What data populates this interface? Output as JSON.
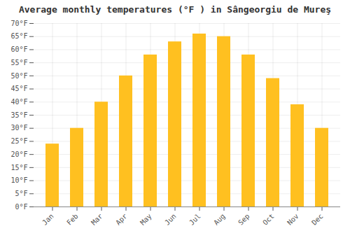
{
  "chart_data": {
    "type": "bar",
    "title": "Average monthly temperatures (°F ) in Sângeorgiu de Mureş",
    "categories": [
      "Jan",
      "Feb",
      "Mar",
      "Apr",
      "May",
      "Jun",
      "Jul",
      "Aug",
      "Sep",
      "Oct",
      "Nov",
      "Dec"
    ],
    "values": [
      24,
      30,
      40,
      50,
      58,
      63,
      66,
      65,
      58,
      49,
      39,
      30
    ],
    "color": "#FFC020",
    "ylim": [
      0,
      70
    ],
    "yticks": [
      {
        "value": 0,
        "label": "0°F"
      },
      {
        "value": 5,
        "label": "5°F"
      },
      {
        "value": 10,
        "label": "10°F"
      },
      {
        "value": 15,
        "label": "15°F"
      },
      {
        "value": 20,
        "label": "20°F"
      },
      {
        "value": 25,
        "label": "25°F"
      },
      {
        "value": 30,
        "label": "30°F"
      },
      {
        "value": 35,
        "label": "35°F"
      },
      {
        "value": 40,
        "label": "40°F"
      },
      {
        "value": 45,
        "label": "45°F"
      },
      {
        "value": 50,
        "label": "50°F"
      },
      {
        "value": 55,
        "label": "55°F"
      },
      {
        "value": 60,
        "label": "60°F"
      },
      {
        "value": 65,
        "label": "65°F"
      },
      {
        "value": 70,
        "label": "70°F"
      }
    ],
    "grid": true
  }
}
